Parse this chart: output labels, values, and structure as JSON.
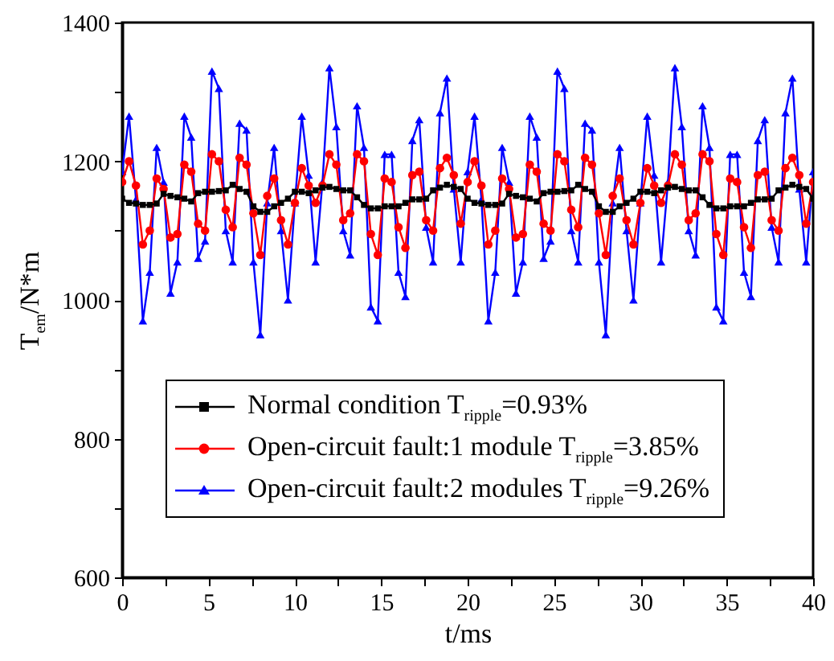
{
  "chart_data": {
    "type": "line",
    "xlabel": "t/ms",
    "ylabel": "T$_{em}$/N*m",
    "x": [
      0,
      0.4,
      0.8,
      1.2,
      1.6,
      2,
      2.4,
      2.8,
      3.2,
      3.6,
      4,
      4.4,
      4.8,
      5.2,
      5.6,
      6,
      6.4,
      6.8,
      7.2,
      7.6,
      8,
      8.4,
      8.8,
      9.2,
      9.6,
      10,
      10.4,
      10.8,
      11.2,
      11.6,
      12,
      12.4,
      12.8,
      13.2,
      13.6,
      14,
      14.4,
      14.8,
      15.2,
      15.6,
      16,
      16.4,
      16.8,
      17.2,
      17.6,
      18,
      18.4,
      18.8,
      19.2,
      19.6,
      20,
      20.4,
      20.8,
      21.2,
      21.6,
      22,
      22.4,
      22.8,
      23.2,
      23.6,
      24,
      24.4,
      24.8,
      25.2,
      25.6,
      26,
      26.4,
      26.8,
      27.2,
      27.6,
      28,
      28.4,
      28.8,
      29.2,
      29.6,
      30,
      30.4,
      30.8,
      31.2,
      31.6,
      32,
      32.4,
      32.8,
      33.2,
      33.6,
      34,
      34.4,
      34.8,
      35.2,
      35.6,
      36,
      36.4,
      36.8,
      37.2,
      37.6,
      38,
      38.4,
      38.8,
      39.2,
      39.6,
      40
    ],
    "series": [
      {
        "name": "Normal condition  T$_{ripple}$=0.93%",
        "color": "#000000",
        "marker": "square",
        "values": [
          1146,
          1140,
          1139,
          1137,
          1137,
          1139,
          1153,
          1150,
          1148,
          1146,
          1142,
          1154,
          1156,
          1156,
          1157,
          1158,
          1166,
          1160,
          1156,
          1135,
          1127,
          1127,
          1135,
          1140,
          1146,
          1156,
          1156,
          1154,
          1158,
          1162,
          1163,
          1160,
          1158,
          1158,
          1148,
          1137,
          1132,
          1132,
          1135,
          1135,
          1135,
          1140,
          1145,
          1145,
          1146,
          1158,
          1162,
          1166,
          1163,
          1160,
          1146,
          1140,
          1139,
          1137,
          1137,
          1139,
          1153,
          1150,
          1148,
          1146,
          1142,
          1154,
          1156,
          1156,
          1157,
          1158,
          1166,
          1160,
          1156,
          1135,
          1127,
          1127,
          1135,
          1140,
          1146,
          1156,
          1156,
          1154,
          1158,
          1162,
          1163,
          1160,
          1158,
          1158,
          1148,
          1137,
          1132,
          1132,
          1135,
          1135,
          1135,
          1140,
          1145,
          1145,
          1146,
          1158,
          1162,
          1166,
          1163,
          1160,
          1146
        ]
      },
      {
        "name": "Open-circuit fault:1 module T$_{ripple}$=3.85%",
        "color": "#ff0000",
        "marker": "circle",
        "values": [
          1170,
          1200,
          1165,
          1080,
          1100,
          1175,
          1160,
          1090,
          1095,
          1195,
          1185,
          1110,
          1100,
          1210,
          1200,
          1130,
          1105,
          1205,
          1195,
          1125,
          1065,
          1150,
          1175,
          1115,
          1080,
          1140,
          1190,
          1165,
          1140,
          1165,
          1210,
          1195,
          1115,
          1125,
          1210,
          1200,
          1095,
          1065,
          1175,
          1170,
          1105,
          1075,
          1180,
          1185,
          1115,
          1100,
          1190,
          1205,
          1180,
          1110,
          1170,
          1200,
          1165,
          1080,
          1100,
          1175,
          1160,
          1090,
          1095,
          1195,
          1185,
          1110,
          1100,
          1210,
          1200,
          1130,
          1105,
          1205,
          1195,
          1125,
          1065,
          1150,
          1175,
          1115,
          1080,
          1140,
          1190,
          1165,
          1140,
          1165,
          1210,
          1195,
          1115,
          1125,
          1210,
          1200,
          1095,
          1065,
          1175,
          1170,
          1105,
          1075,
          1180,
          1185,
          1115,
          1100,
          1190,
          1205,
          1180,
          1110,
          1170
        ]
      },
      {
        "name": "Open-circuit fault:2 modules T$_{ripple}$=9.26%",
        "color": "#0000ff",
        "marker": "triangle",
        "values": [
          1185,
          1265,
          1145,
          970,
          1040,
          1220,
          1170,
          1010,
          1055,
          1265,
          1235,
          1060,
          1085,
          1330,
          1305,
          1100,
          1055,
          1255,
          1245,
          1055,
          950,
          1140,
          1220,
          1100,
          1000,
          1140,
          1265,
          1180,
          1055,
          1170,
          1335,
          1250,
          1100,
          1065,
          1280,
          1220,
          990,
          970,
          1210,
          1210,
          1040,
          1005,
          1230,
          1260,
          1105,
          1055,
          1270,
          1320,
          1160,
          1055,
          1185,
          1265,
          1145,
          970,
          1040,
          1220,
          1170,
          1010,
          1055,
          1265,
          1235,
          1060,
          1085,
          1330,
          1305,
          1100,
          1055,
          1255,
          1245,
          1055,
          950,
          1140,
          1220,
          1100,
          1000,
          1140,
          1265,
          1180,
          1055,
          1170,
          1335,
          1250,
          1100,
          1065,
          1280,
          1220,
          990,
          970,
          1210,
          1210,
          1040,
          1005,
          1230,
          1260,
          1105,
          1055,
          1270,
          1320,
          1160,
          1055,
          1185
        ]
      }
    ],
    "xlim": [
      0,
      40
    ],
    "xticks": [
      0,
      {
        "value": 2.5,
        "label": null
      },
      5,
      {
        "value": 7.5,
        "label": null
      },
      10,
      {
        "value": 12.5,
        "label": null
      },
      15,
      {
        "value": 17.5,
        "label": null
      },
      20,
      {
        "value": 22.5,
        "label": null
      },
      25,
      {
        "value": 27.5,
        "label": null
      },
      30,
      {
        "value": 32.5,
        "label": null
      },
      35,
      {
        "value": 37.5,
        "label": null
      },
      40
    ],
    "ylim": [
      600,
      1400
    ],
    "yticks": [
      600,
      {
        "value": 700,
        "label": null
      },
      800,
      {
        "value": 900,
        "label": null
      },
      1000,
      {
        "value": 1100,
        "label": null
      },
      1200,
      {
        "value": 1300,
        "label": null
      },
      1400
    ],
    "grid": false,
    "legend": "bottom left",
    "line_style": "solid"
  }
}
